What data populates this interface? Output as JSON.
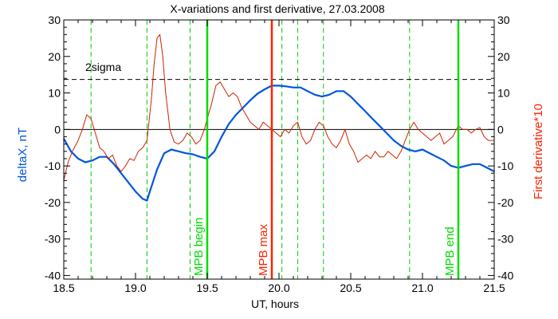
{
  "chart_data": {
    "type": "line",
    "title": "X-variations and first derivative, 27.03.2008",
    "xlabel": "UT, hours",
    "ylabel_left": "deltaX, nT",
    "ylabel_right": "First derivative*10",
    "xlim": [
      18.5,
      21.5
    ],
    "ylim": [
      -41,
      30
    ],
    "xticks": [
      "18.5",
      "19.0",
      "19.5",
      "20.0",
      "20.5",
      "21.0",
      "21.5"
    ],
    "yticks": [
      "-40",
      "-30",
      "-20",
      "-10",
      "0",
      "10",
      "20",
      "30"
    ],
    "annotation": {
      "text": "2sigma",
      "level": 13.7
    },
    "dashed_verticals": [
      18.69,
      19.08,
      19.38,
      20.02,
      20.13,
      20.31,
      20.91
    ],
    "markers": [
      {
        "label": "MPB begin",
        "x": 19.5,
        "color": "#00dd00"
      },
      {
        "label": "MPB max",
        "x": 19.95,
        "color": "#ff2200"
      },
      {
        "label": "MPB end",
        "x": 21.25,
        "color": "#00dd00"
      }
    ],
    "colors": {
      "deltaX": "#0055dd",
      "derivative": "#cc2200",
      "axes_right": "#ff2200",
      "grid_green": "#00cc00"
    },
    "series": [
      {
        "name": "deltaX",
        "x": [
          18.5,
          18.55,
          18.6,
          18.65,
          18.7,
          18.75,
          18.8,
          18.85,
          18.9,
          18.95,
          19.0,
          19.05,
          19.08,
          19.1,
          19.15,
          19.2,
          19.25,
          19.3,
          19.35,
          19.4,
          19.45,
          19.5,
          19.55,
          19.6,
          19.65,
          19.7,
          19.75,
          19.8,
          19.85,
          19.9,
          19.95,
          20.0,
          20.05,
          20.1,
          20.15,
          20.2,
          20.25,
          20.3,
          20.35,
          20.4,
          20.45,
          20.5,
          20.55,
          20.6,
          20.65,
          20.7,
          20.75,
          20.8,
          20.85,
          20.9,
          20.95,
          21.0,
          21.05,
          21.1,
          21.15,
          21.2,
          21.25,
          21.3,
          21.35,
          21.4,
          21.45,
          21.5
        ],
        "values": [
          -2.5,
          -6.0,
          -8.0,
          -9.0,
          -8.5,
          -7.5,
          -7.5,
          -9.5,
          -12.0,
          -14.5,
          -17.0,
          -19.0,
          -19.5,
          -17.0,
          -11.0,
          -6.5,
          -5.5,
          -6.0,
          -6.5,
          -6.8,
          -7.5,
          -8.0,
          -6.0,
          -2.0,
          1.5,
          4.0,
          6.0,
          8.0,
          9.8,
          11.0,
          12.0,
          12.0,
          11.8,
          11.5,
          11.5,
          10.5,
          9.5,
          9.0,
          9.5,
          10.5,
          10.5,
          9.0,
          7.0,
          5.0,
          3.0,
          1.0,
          -1.0,
          -3.0,
          -4.5,
          -5.5,
          -6.0,
          -5.5,
          -6.5,
          -7.5,
          -8.5,
          -10.0,
          -10.5,
          -10.0,
          -9.5,
          -9.5,
          -10.5,
          -11.5
        ]
      },
      {
        "name": "derivative",
        "x": [
          18.5,
          18.53,
          18.56,
          18.6,
          18.63,
          18.66,
          18.69,
          18.72,
          18.75,
          18.78,
          18.81,
          18.84,
          18.87,
          18.9,
          18.93,
          18.96,
          18.99,
          19.02,
          19.05,
          19.08,
          19.11,
          19.13,
          19.15,
          19.17,
          19.19,
          19.21,
          19.24,
          19.27,
          19.3,
          19.33,
          19.36,
          19.39,
          19.42,
          19.45,
          19.48,
          19.5,
          19.53,
          19.56,
          19.59,
          19.62,
          19.65,
          19.68,
          19.71,
          19.74,
          19.77,
          19.8,
          19.83,
          19.86,
          19.89,
          19.92,
          19.95,
          19.98,
          20.01,
          20.04,
          20.07,
          20.1,
          20.13,
          20.16,
          20.19,
          20.22,
          20.25,
          20.28,
          20.31,
          20.34,
          20.37,
          20.4,
          20.43,
          20.46,
          20.49,
          20.52,
          20.55,
          20.58,
          20.61,
          20.64,
          20.67,
          20.7,
          20.73,
          20.76,
          20.79,
          20.82,
          20.85,
          20.88,
          20.91,
          20.94,
          20.97,
          21.0,
          21.03,
          21.06,
          21.09,
          21.12,
          21.15,
          21.18,
          21.21,
          21.25,
          21.28,
          21.31,
          21.34,
          21.37,
          21.4,
          21.43,
          21.46,
          21.5
        ],
        "values": [
          -14.0,
          -9.0,
          -6.0,
          -3.0,
          0.0,
          4.0,
          3.0,
          -1.0,
          -5.0,
          -6.0,
          -8.0,
          -7.0,
          -10.0,
          -11.5,
          -10.0,
          -8.0,
          -8.5,
          -6.0,
          -5.0,
          -3.0,
          8.0,
          18.0,
          25.0,
          26.0,
          20.0,
          10.0,
          0.0,
          -3.5,
          -4.0,
          -3.0,
          -1.0,
          -2.0,
          -4.0,
          -3.0,
          0.0,
          3.0,
          7.0,
          12.0,
          13.0,
          11.0,
          9.0,
          10.0,
          9.0,
          6.0,
          4.0,
          2.0,
          1.0,
          0.0,
          2.0,
          1.0,
          0.0,
          -1.0,
          -2.0,
          0.0,
          -1.0,
          1.0,
          2.0,
          -2.0,
          -4.0,
          -3.0,
          0.0,
          2.0,
          1.0,
          -2.0,
          -4.0,
          -5.0,
          -3.0,
          0.0,
          -4.0,
          -6.0,
          -9.0,
          -8.0,
          -7.0,
          -8.0,
          -6.0,
          -7.5,
          -7.5,
          -6.0,
          -7.0,
          -8.0,
          -6.0,
          -3.0,
          0.0,
          2.0,
          0.0,
          -1.0,
          -2.0,
          -3.0,
          -2.0,
          -1.0,
          -4.0,
          -3.0,
          -2.0,
          1.0,
          0.0,
          0.0,
          -1.0,
          0.0,
          0.5,
          -2.0,
          -3.0,
          -3.0
        ]
      }
    ]
  }
}
